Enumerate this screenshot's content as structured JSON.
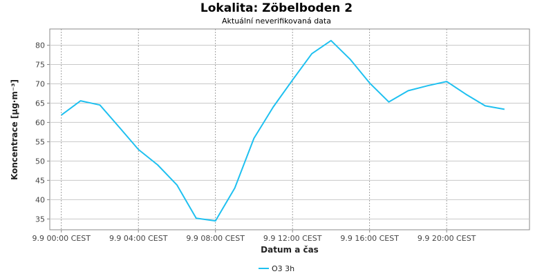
{
  "chart_data": {
    "type": "line",
    "title": "Lokalita: Zöbelboden 2",
    "subtitle": "Aktuální neverifikovaná data",
    "xlabel": "Datum a čas",
    "ylabel": "Koncentrace [µg·m⁻³]",
    "x_ticks": [
      "9.9 00:00 CEST",
      "9.9 04:00 CEST",
      "9.9 08:00 CEST",
      "9.9 12:00 CEST",
      "9.9 16:00 CEST",
      "9.9 20:00 CEST"
    ],
    "x_tick_hours": [
      0,
      4,
      8,
      12,
      16,
      20
    ],
    "x_range_hours": [
      -0.6,
      24.3
    ],
    "y_ticks": [
      35,
      40,
      45,
      50,
      55,
      60,
      65,
      70,
      75,
      80
    ],
    "ylim": [
      32.2,
      84.2
    ],
    "grid": true,
    "legend_position": "bottom",
    "series": [
      {
        "name": "O3 3h",
        "color": "#1ec0f0",
        "x_hours": [
          0,
          1,
          2,
          3,
          4,
          5,
          6,
          7,
          8,
          9,
          10,
          11,
          12,
          13,
          14,
          15,
          16,
          17,
          18,
          19,
          20,
          21,
          22,
          23
        ],
        "values": [
          61.9,
          65.6,
          64.5,
          58.8,
          53.0,
          49.0,
          43.8,
          35.2,
          34.5,
          43.0,
          55.9,
          64.0,
          71.0,
          77.8,
          81.2,
          76.3,
          70.2,
          65.3,
          68.2,
          69.5,
          70.6,
          67.3,
          64.3,
          63.4
        ]
      }
    ]
  }
}
